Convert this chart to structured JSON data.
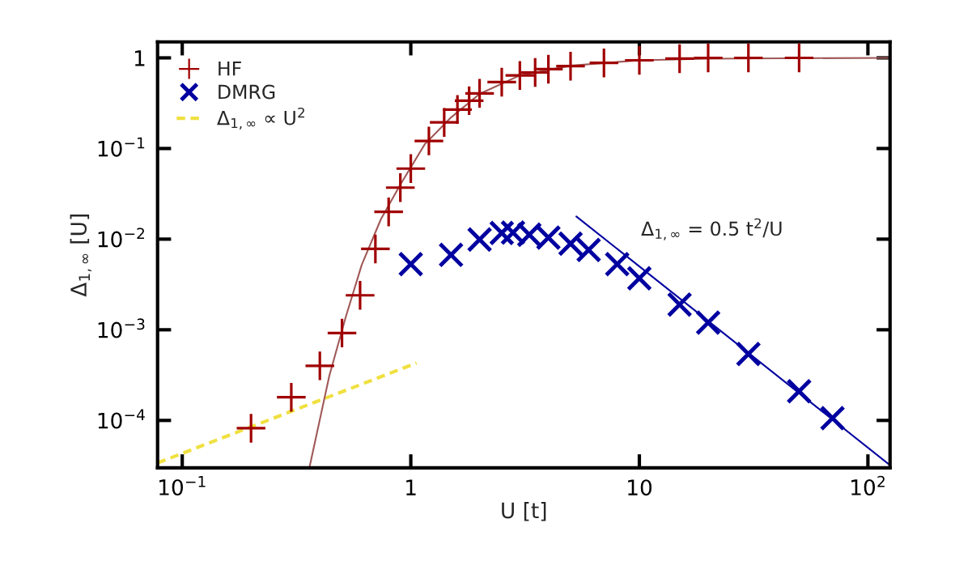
{
  "chart_data": {
    "type": "scatter",
    "xlabel": "U [t]",
    "ylabel": "Δ$_{1,∞}$ [U]",
    "log": "xy",
    "xlim": [
      0.078,
      125
    ],
    "ylim": [
      3e-05,
      1.5
    ],
    "xticks": [
      {
        "value": 0.1,
        "label": "10$^{−1}$"
      },
      1,
      10,
      {
        "value": 100,
        "label": "10$^{2}$"
      }
    ],
    "yticks": [
      {
        "value": 0.0001,
        "label": "10$^{−4}$"
      },
      {
        "value": 0.001,
        "label": "10$^{−3}$"
      },
      {
        "value": 0.01,
        "label": "10$^{−2}$"
      },
      {
        "value": 0.1,
        "label": "10$^{−1}$"
      },
      1
    ],
    "grid": false,
    "legend": "top left",
    "annotations": [
      "Δ$_{1,∞}$ = 0.5 t$^{2}$/U"
    ],
    "series": [
      {
        "name": "HF",
        "marker": "cross",
        "color": "#a00000",
        "x": [
          0.2,
          0.3,
          0.4,
          0.5,
          0.6,
          0.7,
          0.8,
          0.9,
          1.0,
          1.2,
          1.4,
          1.6,
          1.8,
          2.0,
          2.5,
          3,
          3.5,
          4,
          5,
          7,
          10,
          15,
          20,
          30,
          50
        ],
        "values": [
          8.2e-05,
          0.00018,
          0.0004,
          0.00092,
          0.0024,
          0.0078,
          0.02,
          0.037,
          0.06,
          0.121,
          0.194,
          0.269,
          0.337,
          0.406,
          0.54,
          0.64,
          0.69,
          0.75,
          0.81,
          0.88,
          0.94,
          0.98,
          1.0,
          1.0,
          1.0
        ]
      },
      {
        "name": "DMRG",
        "marker": "cross",
        "color": "#0000a0",
        "x": [
          1.0,
          1.5,
          2,
          2.5,
          2.8,
          3.3,
          4,
          5,
          6,
          8,
          10,
          15,
          20,
          30,
          50,
          70
        ],
        "values": [
          0.0053,
          0.0067,
          0.0099,
          0.0117,
          0.0118,
          0.0112,
          0.0104,
          0.0089,
          0.0076,
          0.0053,
          0.0037,
          0.0019,
          0.0012,
          0.00054,
          0.00021,
          0.000106
        ]
      },
      {
        "name": "Δ$_{1,∞}$ ∝ U$^{2}$",
        "type": "line",
        "line_style": "dashed",
        "color": "#f0e040",
        "x": [
          0.078,
          1.06
        ],
        "values": [
          3.4e-05,
          0.00043
        ]
      },
      {
        "type": "line",
        "line_style": "solid",
        "color": "#a05858",
        "x": [
          0.36,
          0.44,
          0.52,
          0.61,
          0.74,
          0.9,
          1.15,
          1.5,
          2.0,
          3,
          5,
          10,
          20,
          125
        ],
        "values": [
          3e-05,
          0.00031,
          0.0014,
          0.0052,
          0.0166,
          0.04,
          0.111,
          0.22,
          0.4,
          0.64,
          0.82,
          0.94,
          0.98,
          1.0
        ]
      },
      {
        "type": "line",
        "line_style": "solid",
        "color": "#0000a0",
        "x": [
          5.3,
          125
        ],
        "values": [
          0.0178,
          3.2e-05
        ]
      }
    ]
  }
}
